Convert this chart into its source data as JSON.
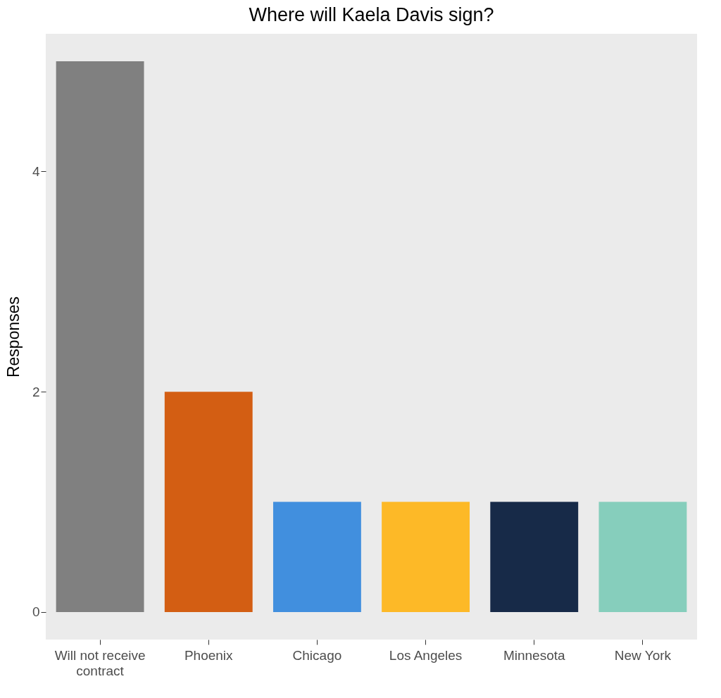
{
  "chart_data": {
    "type": "bar",
    "title": "Where will Kaela Davis sign?",
    "ylabel": "Responses",
    "categories": [
      "Will not receive contract",
      "Phoenix",
      "Chicago",
      "Los Angeles",
      "Minnesota",
      "New York"
    ],
    "values": [
      5,
      2,
      1,
      1,
      1,
      1
    ],
    "colors": [
      "#808080",
      "#d35e13",
      "#418fde",
      "#fdb927",
      "#172a48",
      "#86cebc"
    ],
    "ylim": [
      -0.25,
      5.25
    ],
    "yticks": [
      0,
      2,
      4
    ],
    "grid": false
  }
}
